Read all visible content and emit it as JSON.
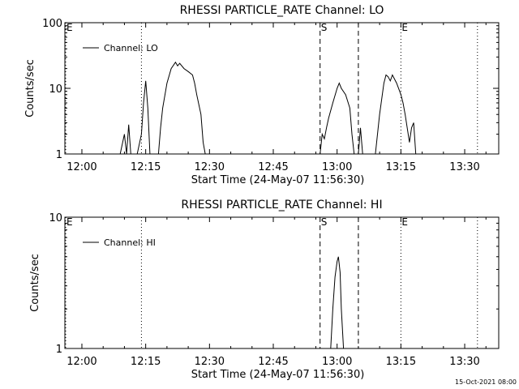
{
  "footer_timestamp": "15-Oct-2021 08:00",
  "chart_data": [
    {
      "type": "line",
      "title": "RHESSI PARTICLE_RATE Channel: LO",
      "xlabel": "Start Time (24-May-07 11:56:30)",
      "ylabel": "Counts/sec",
      "yscale": "log",
      "xlim": [
        "11:56",
        "13:38"
      ],
      "ylim": [
        1,
        100
      ],
      "x_ticks": [
        "12:00",
        "12:15",
        "12:30",
        "12:45",
        "13:00",
        "13:15",
        "13:30"
      ],
      "y_ticks": [
        {
          "value": 1,
          "label": "1"
        },
        {
          "value": 10,
          "label": "10"
        },
        {
          "value": 100,
          "label": "100"
        }
      ],
      "legend": {
        "position": "top-left",
        "entries": [
          "Channel: LO"
        ]
      },
      "markers": [
        {
          "time": "11:56",
          "label": "E",
          "style": "dotted"
        },
        {
          "time": "12:14",
          "label": "",
          "style": "dotted"
        },
        {
          "time": "12:56",
          "label": "S",
          "style": "dashed"
        },
        {
          "time": "13:05",
          "label": "",
          "style": "dashed"
        },
        {
          "time": "13:15",
          "label": "E",
          "style": "dotted"
        },
        {
          "time": "13:33",
          "label": "",
          "style": "dotted"
        }
      ],
      "series": [
        {
          "name": "Channel: LO",
          "points": [
            [
              "12:09",
              1
            ],
            [
              "12:10",
              2.0
            ],
            [
              "12:10.5",
              1
            ],
            [
              "12:11",
              2.8
            ],
            [
              "12:11.5",
              1
            ],
            [
              "12:13",
              1
            ],
            [
              "12:14",
              2.0
            ],
            [
              "12:14.5",
              6
            ],
            [
              "12:15",
              13
            ],
            [
              "12:15.5",
              5
            ],
            [
              "12:16",
              1
            ],
            [
              "12:18",
              1
            ],
            [
              "12:18.5",
              2.5
            ],
            [
              "12:19",
              5
            ],
            [
              "12:20",
              12
            ],
            [
              "12:21",
              20
            ],
            [
              "12:22",
              25
            ],
            [
              "12:22.5",
              22
            ],
            [
              "12:23",
              24
            ],
            [
              "12:24",
              20
            ],
            [
              "12:25",
              18
            ],
            [
              "12:26",
              16
            ],
            [
              "12:26.5",
              12
            ],
            [
              "12:27",
              8
            ],
            [
              "12:28",
              4
            ],
            [
              "12:28.5",
              1.5
            ],
            [
              "12:29",
              1
            ],
            [
              "12:56",
              1
            ],
            [
              "12:56.5",
              2.0
            ],
            [
              "12:57",
              1.7
            ],
            [
              "12:57.5",
              2.5
            ],
            [
              "12:58",
              3.5
            ],
            [
              "12:59",
              6
            ],
            [
              "13:00",
              10
            ],
            [
              "13:00.5",
              12
            ],
            [
              "13:01",
              10
            ],
            [
              "13:02",
              8
            ],
            [
              "13:03",
              5
            ],
            [
              "13:03.5",
              2
            ],
            [
              "13:04",
              1
            ],
            [
              "13:05",
              1
            ],
            [
              "13:05.5",
              2.5
            ],
            [
              "13:06",
              1
            ],
            [
              "13:09",
              1
            ],
            [
              "13:10",
              4
            ],
            [
              "13:11",
              12
            ],
            [
              "13:11.5",
              16
            ],
            [
              "13:12",
              15
            ],
            [
              "13:12.5",
              13
            ],
            [
              "13:13",
              16
            ],
            [
              "13:14",
              12
            ],
            [
              "13:15",
              8
            ],
            [
              "13:15.5",
              6
            ],
            [
              "13:16",
              4
            ],
            [
              "13:17",
              1.5
            ],
            [
              "13:17.5",
              2.5
            ],
            [
              "13:18",
              3
            ],
            [
              "13:18.5",
              1
            ]
          ]
        }
      ]
    },
    {
      "type": "line",
      "title": "RHESSI PARTICLE_RATE Channel: HI",
      "xlabel": "Start Time (24-May-07 11:56:30)",
      "ylabel": "Counts/sec",
      "yscale": "log",
      "xlim": [
        "11:56",
        "13:38"
      ],
      "ylim": [
        1,
        10
      ],
      "x_ticks": [
        "12:00",
        "12:15",
        "12:30",
        "12:45",
        "13:00",
        "13:15",
        "13:30"
      ],
      "y_ticks": [
        {
          "value": 1,
          "label": "1"
        },
        {
          "value": 10,
          "label": "10"
        }
      ],
      "legend": {
        "position": "top-left",
        "entries": [
          "Channel: HI"
        ]
      },
      "markers": [
        {
          "time": "11:56",
          "label": "E",
          "style": "dotted"
        },
        {
          "time": "12:14",
          "label": "",
          "style": "dotted"
        },
        {
          "time": "12:56",
          "label": "S",
          "style": "dashed"
        },
        {
          "time": "13:05",
          "label": "",
          "style": "dashed"
        },
        {
          "time": "13:15",
          "label": "E",
          "style": "dotted"
        },
        {
          "time": "13:33",
          "label": "",
          "style": "dotted"
        }
      ],
      "series": [
        {
          "name": "Channel: HI",
          "points": [
            [
              "12:58.5",
              1
            ],
            [
              "12:59",
              2.0
            ],
            [
              "12:59.5",
              3.5
            ],
            [
              "13:00",
              4.6
            ],
            [
              "13:00.3",
              5.0
            ],
            [
              "13:00.7",
              3.8
            ],
            [
              "13:01",
              2.0
            ],
            [
              "13:01.5",
              1
            ]
          ]
        }
      ]
    }
  ]
}
